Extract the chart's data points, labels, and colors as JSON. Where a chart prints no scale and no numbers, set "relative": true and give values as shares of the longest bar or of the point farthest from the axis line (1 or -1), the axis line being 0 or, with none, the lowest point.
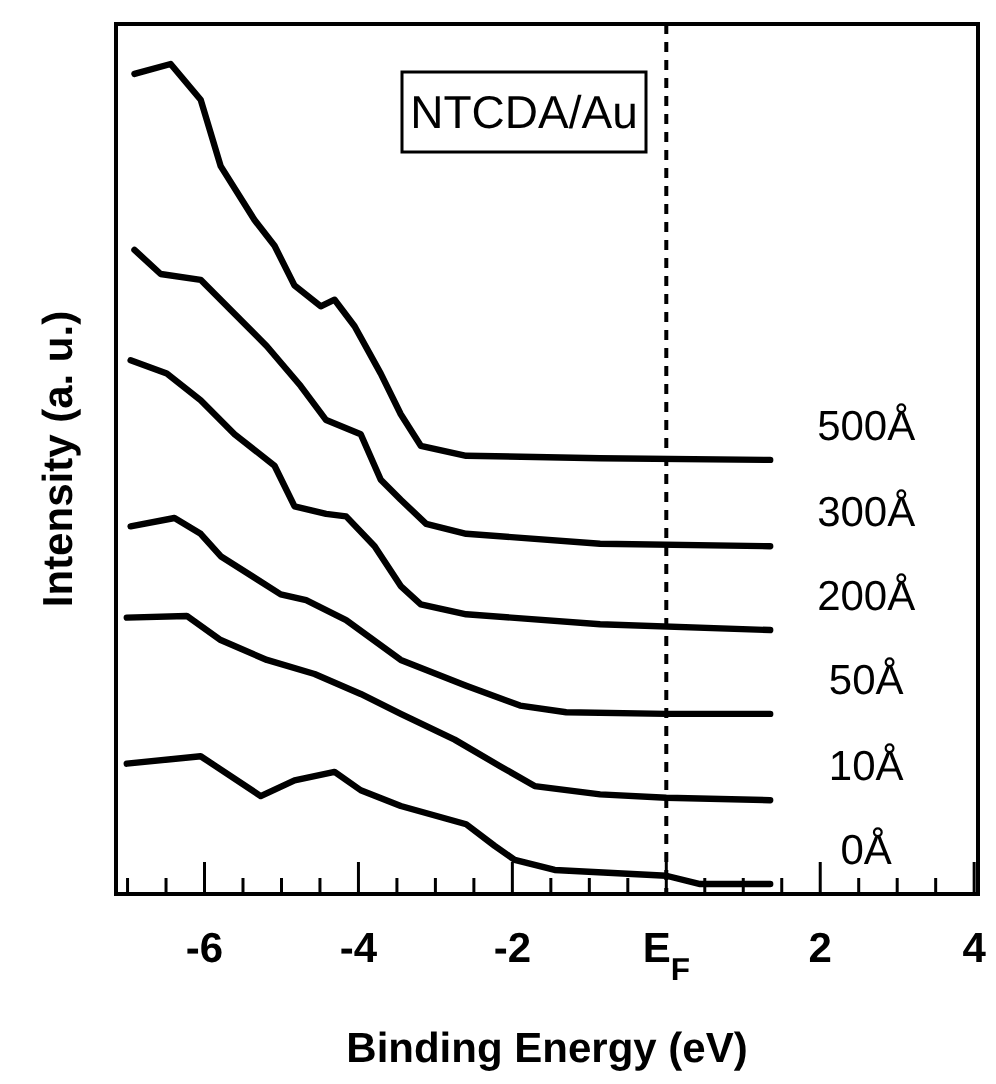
{
  "chart_data": {
    "type": "line",
    "relative": true,
    "xlabel": "Binding Energy (eV)",
    "ylabel": "Intensity (a. u.)",
    "annotations": [
      "NTCDA/Au"
    ],
    "xlim": [
      -7.15,
      4.05
    ],
    "xticks": [
      {
        "value": -7,
        "label": null
      },
      {
        "value": -6.5,
        "label": null
      },
      -6,
      {
        "value": -5.5,
        "label": null
      },
      {
        "value": -5,
        "label": null
      },
      {
        "value": -4.5,
        "label": null
      },
      -4,
      {
        "value": -3.5,
        "label": null
      },
      {
        "value": -3,
        "label": null
      },
      {
        "value": -2.5,
        "label": null
      },
      -2,
      {
        "value": -1.5,
        "label": null
      },
      {
        "value": -1,
        "label": null
      },
      {
        "value": -0.5,
        "label": null
      },
      {
        "value": 0,
        "label": "E$_{F}$"
      },
      {
        "value": 0.5,
        "label": null
      },
      {
        "value": 1,
        "label": null
      },
      {
        "value": 1.5,
        "label": null
      },
      2,
      {
        "value": 2.5,
        "label": null
      },
      {
        "value": 3,
        "label": null
      },
      {
        "value": 3.5,
        "label": null
      },
      4
    ],
    "tick_labels": "x",
    "marker": "none",
    "line_style": "solid",
    "grid": false,
    "ref_lines": [
      {
        "axis": "x",
        "value": 0,
        "color": "#000000",
        "line_style": "dashed"
      }
    ],
    "series": [
      {
        "name": "500Å",
        "color": "#000000",
        "x": [
          -6.91,
          -6.44,
          -6.05,
          -5.79,
          -5.35,
          -5.09,
          -4.83,
          -4.49,
          -4.31,
          -4.05,
          -3.71,
          -3.45,
          -3.19,
          -2.6,
          -0.86,
          1.35
        ],
        "values": [
          0.988,
          1.0,
          0.957,
          0.877,
          0.812,
          0.781,
          0.733,
          0.708,
          0.716,
          0.684,
          0.627,
          0.578,
          0.54,
          0.528,
          0.525,
          0.523
        ]
      },
      {
        "name": "300Å",
        "color": "#000000",
        "x": [
          -6.91,
          -6.57,
          -6.05,
          -5.61,
          -5.19,
          -4.75,
          -4.42,
          -3.97,
          -3.71,
          -3.45,
          -3.12,
          -2.6,
          -0.86,
          1.35
        ],
        "values": [
          0.776,
          0.747,
          0.74,
          0.699,
          0.66,
          0.612,
          0.571,
          0.554,
          0.499,
          0.475,
          0.446,
          0.434,
          0.422,
          0.419
        ]
      },
      {
        "name": "200Å",
        "color": "#000000",
        "x": [
          -6.96,
          -6.49,
          -6.05,
          -5.61,
          -5.09,
          -4.83,
          -4.42,
          -4.16,
          -3.79,
          -3.45,
          -3.19,
          -2.6,
          -0.86,
          1.35
        ],
        "values": [
          0.643,
          0.627,
          0.595,
          0.554,
          0.516,
          0.467,
          0.458,
          0.455,
          0.419,
          0.371,
          0.349,
          0.337,
          0.325,
          0.318
        ]
      },
      {
        "name": "50Å",
        "color": "#000000",
        "x": [
          -6.96,
          -6.39,
          -6.05,
          -5.79,
          -5.01,
          -4.68,
          -4.16,
          -3.45,
          -2.6,
          -1.9,
          -1.3,
          0,
          1.35
        ],
        "values": [
          0.443,
          0.453,
          0.434,
          0.407,
          0.361,
          0.354,
          0.33,
          0.282,
          0.251,
          0.227,
          0.219,
          0.217,
          0.217
        ]
      },
      {
        "name": "10Å",
        "color": "#000000",
        "x": [
          -7.01,
          -6.23,
          -5.79,
          -5.19,
          -4.57,
          -3.97,
          -3.45,
          -2.75,
          -2.16,
          -1.71,
          -0.86,
          0,
          1.35
        ],
        "values": [
          0.333,
          0.335,
          0.306,
          0.282,
          0.265,
          0.241,
          0.217,
          0.186,
          0.154,
          0.13,
          0.12,
          0.116,
          0.113
        ]
      },
      {
        "name": "0Å",
        "color": "#000000",
        "x": [
          -7.01,
          -6.05,
          -5.27,
          -4.83,
          -4.31,
          -3.97,
          -3.45,
          -2.6,
          -2.23,
          -1.97,
          -1.45,
          0,
          0.44,
          1.35
        ],
        "values": [
          0.157,
          0.166,
          0.118,
          0.137,
          0.147,
          0.125,
          0.106,
          0.084,
          0.058,
          0.041,
          0.029,
          0.022,
          0.012,
          0.012
        ]
      }
    ]
  }
}
